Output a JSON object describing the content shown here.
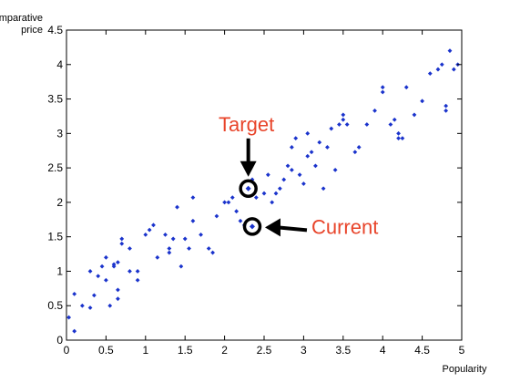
{
  "chart_data": {
    "type": "scatter",
    "title": "",
    "xlabel": "Popularity",
    "ylabel_line1": "Comparative",
    "ylabel_line2": "price",
    "xlim": [
      0,
      5
    ],
    "ylim": [
      0,
      4.5
    ],
    "xticks": [
      0,
      0.5,
      1,
      1.5,
      2,
      2.5,
      3,
      3.5,
      4,
      4.5,
      5
    ],
    "xtick_labels": [
      "0",
      "0.5",
      "1",
      "1.5",
      "2",
      "2.5",
      "3",
      "3.5",
      "4",
      "4.5",
      "5"
    ],
    "yticks": [
      0,
      0.5,
      1,
      1.5,
      2,
      2.5,
      3,
      3.5,
      4,
      4.5
    ],
    "ytick_labels": [
      "0",
      "0.5",
      "1",
      "1.5",
      "2",
      "2.5",
      "3",
      "3.5",
      "4",
      "4.5"
    ],
    "grid": false,
    "marker_color": "#1a33cc",
    "points": [
      [
        0.03,
        0.33
      ],
      [
        0.1,
        0.67
      ],
      [
        0.1,
        0.13
      ],
      [
        0.2,
        0.5
      ],
      [
        0.3,
        1.0
      ],
      [
        0.35,
        0.65
      ],
      [
        0.3,
        0.47
      ],
      [
        0.4,
        0.93
      ],
      [
        0.45,
        1.07
      ],
      [
        0.5,
        0.87
      ],
      [
        0.5,
        1.2
      ],
      [
        0.55,
        0.5
      ],
      [
        0.6,
        1.1
      ],
      [
        0.6,
        1.07
      ],
      [
        0.65,
        1.13
      ],
      [
        0.65,
        0.73
      ],
      [
        0.65,
        0.6
      ],
      [
        0.7,
        1.4
      ],
      [
        0.7,
        1.47
      ],
      [
        0.8,
        1.0
      ],
      [
        0.8,
        1.33
      ],
      [
        0.9,
        1.0
      ],
      [
        0.9,
        0.87
      ],
      [
        1.0,
        1.53
      ],
      [
        1.05,
        1.6
      ],
      [
        1.1,
        1.67
      ],
      [
        1.15,
        1.2
      ],
      [
        1.25,
        1.53
      ],
      [
        1.3,
        1.27
      ],
      [
        1.3,
        1.33
      ],
      [
        1.35,
        1.47
      ],
      [
        1.4,
        1.93
      ],
      [
        1.45,
        1.07
      ],
      [
        1.5,
        1.47
      ],
      [
        1.55,
        1.33
      ],
      [
        1.6,
        2.07
      ],
      [
        1.6,
        1.73
      ],
      [
        1.7,
        1.53
      ],
      [
        1.8,
        1.33
      ],
      [
        1.85,
        1.27
      ],
      [
        1.9,
        1.8
      ],
      [
        2.0,
        2.0
      ],
      [
        2.05,
        2.0
      ],
      [
        2.1,
        2.07
      ],
      [
        2.15,
        1.87
      ],
      [
        2.2,
        1.73
      ],
      [
        2.25,
        1.67
      ],
      [
        2.35,
        2.33
      ],
      [
        2.4,
        2.07
      ],
      [
        2.5,
        2.13
      ],
      [
        2.55,
        2.4
      ],
      [
        2.6,
        2.0
      ],
      [
        2.65,
        2.13
      ],
      [
        2.7,
        2.2
      ],
      [
        2.75,
        2.33
      ],
      [
        2.8,
        2.53
      ],
      [
        2.85,
        2.47
      ],
      [
        2.85,
        2.8
      ],
      [
        2.9,
        2.93
      ],
      [
        2.95,
        2.4
      ],
      [
        3.0,
        2.27
      ],
      [
        3.05,
        2.67
      ],
      [
        3.05,
        3.0
      ],
      [
        3.1,
        2.73
      ],
      [
        3.15,
        2.53
      ],
      [
        3.2,
        2.87
      ],
      [
        3.25,
        2.2
      ],
      [
        3.3,
        2.8
      ],
      [
        3.35,
        3.07
      ],
      [
        3.4,
        2.47
      ],
      [
        3.45,
        3.13
      ],
      [
        3.5,
        3.27
      ],
      [
        3.5,
        3.2
      ],
      [
        3.55,
        3.13
      ],
      [
        3.65,
        2.73
      ],
      [
        3.7,
        2.8
      ],
      [
        3.8,
        3.13
      ],
      [
        3.9,
        3.33
      ],
      [
        4.0,
        3.6
      ],
      [
        4.0,
        3.67
      ],
      [
        4.1,
        3.13
      ],
      [
        4.15,
        3.2
      ],
      [
        4.2,
        3.0
      ],
      [
        4.2,
        2.93
      ],
      [
        4.25,
        2.93
      ],
      [
        4.3,
        3.67
      ],
      [
        4.4,
        3.27
      ],
      [
        4.5,
        3.47
      ],
      [
        4.6,
        3.87
      ],
      [
        4.7,
        3.93
      ],
      [
        4.75,
        4.0
      ],
      [
        4.8,
        3.33
      ],
      [
        4.8,
        3.4
      ],
      [
        4.85,
        4.2
      ],
      [
        4.9,
        3.93
      ],
      [
        4.95,
        4.0
      ]
    ],
    "annotations": [
      {
        "label": "Target",
        "x": 2.3,
        "y": 2.2,
        "arrow": "down"
      },
      {
        "label": "Current",
        "x": 2.35,
        "y": 1.65,
        "arrow": "left"
      }
    ]
  }
}
